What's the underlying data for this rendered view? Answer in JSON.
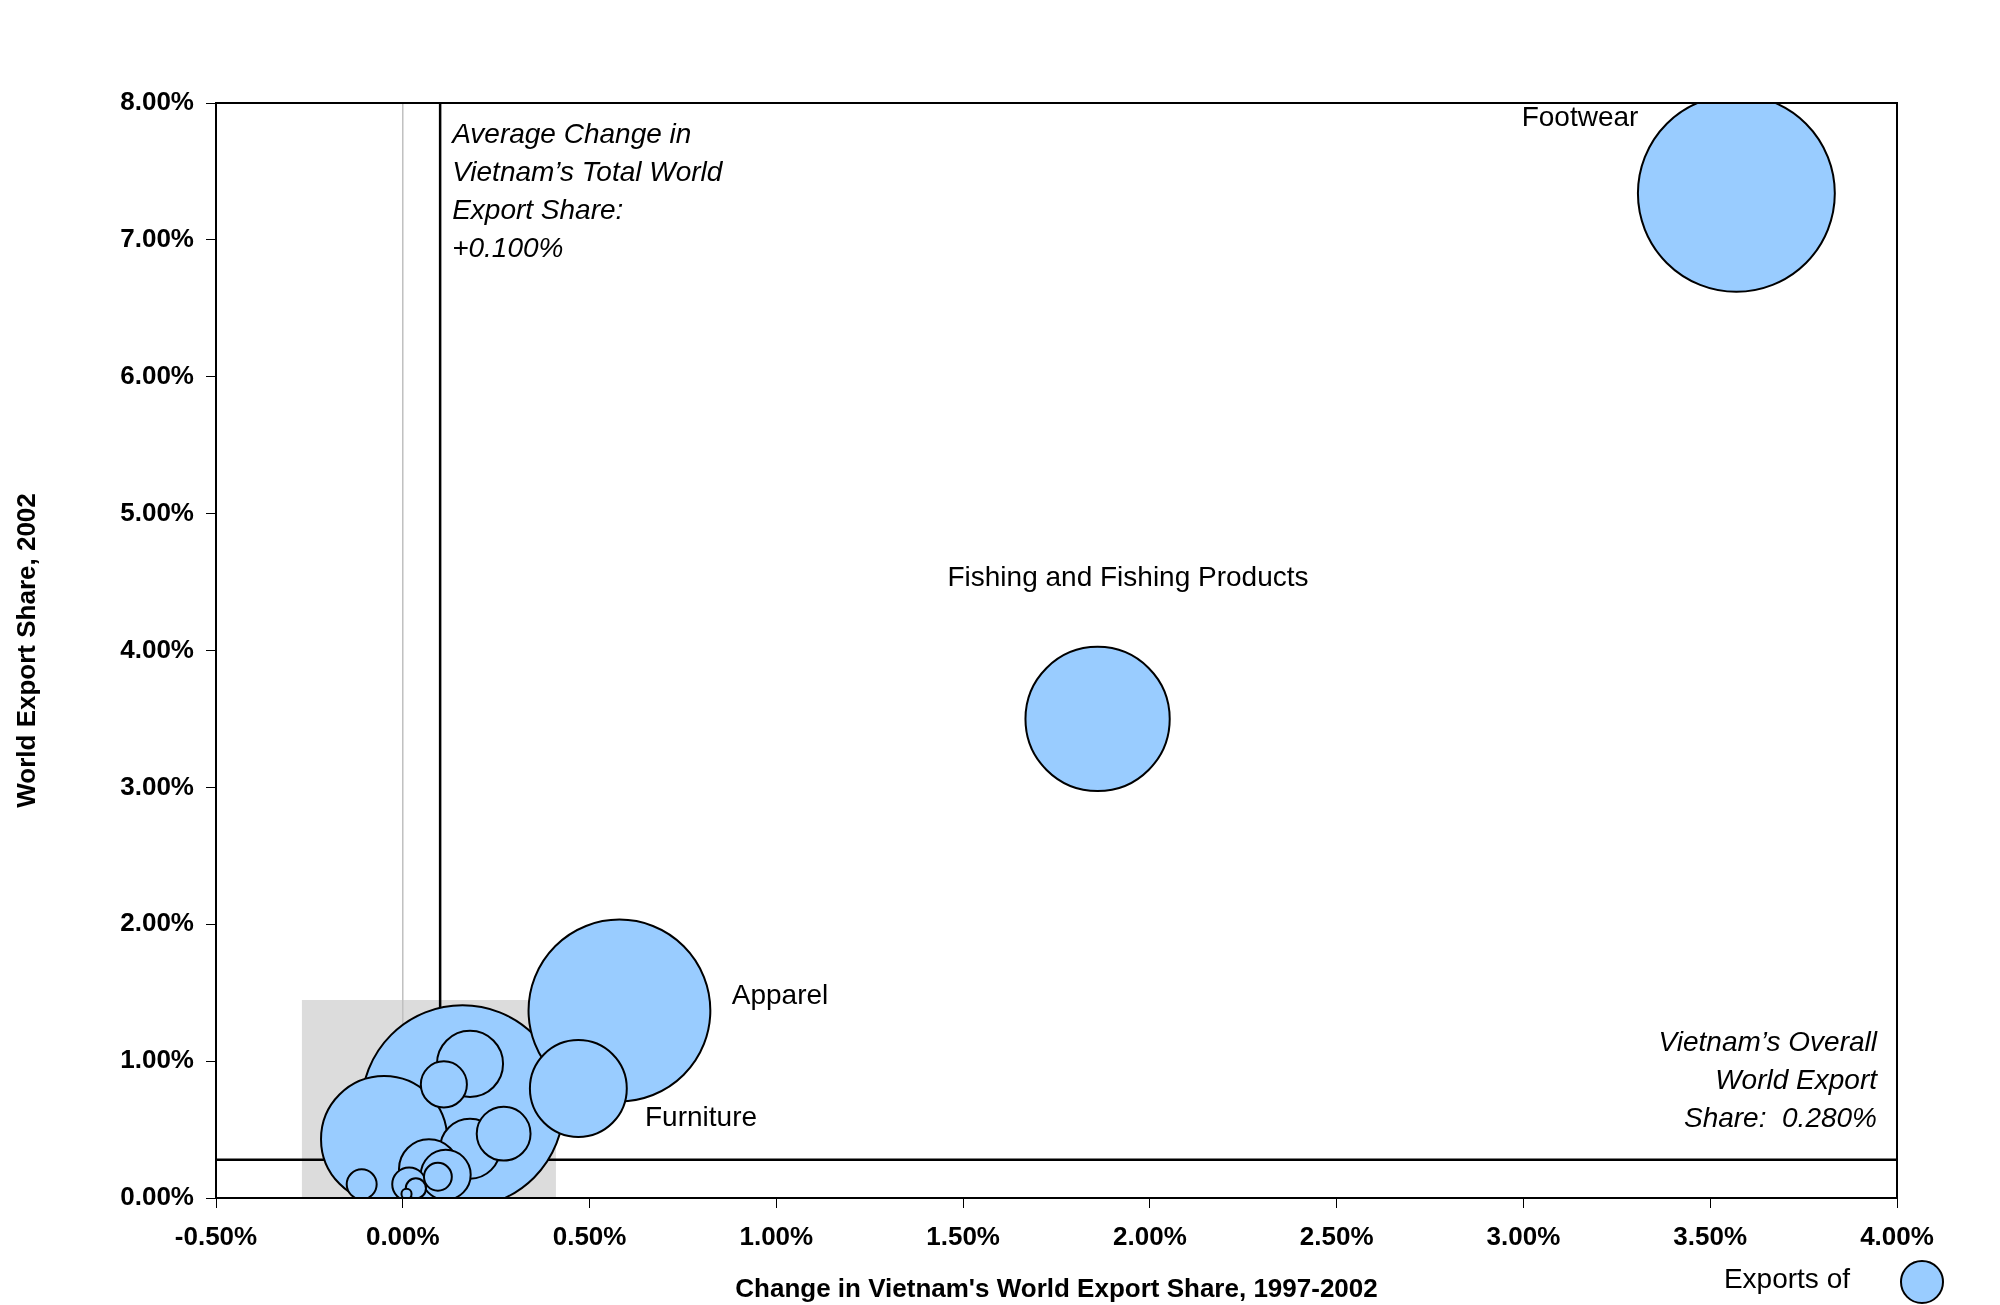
{
  "chart_data": {
    "type": "bubble",
    "xlabel": "Change in Vietnam's World Export Share, 1997-2002",
    "ylabel": "World Export Share, 2002",
    "xlim": [
      -0.5,
      4
    ],
    "ylim": [
      0,
      8
    ],
    "xticks": [
      {
        "value": -0.5,
        "label": "-0.50%"
      },
      {
        "value": 0,
        "label": "0.00%"
      },
      {
        "value": 0.5,
        "label": "0.50%"
      },
      {
        "value": 1,
        "label": "1.00%"
      },
      {
        "value": 1.5,
        "label": "1.50%"
      },
      {
        "value": 2,
        "label": "2.00%"
      },
      {
        "value": 2.5,
        "label": "2.50%"
      },
      {
        "value": 3,
        "label": "3.00%"
      },
      {
        "value": 3.5,
        "label": "3.50%"
      },
      {
        "value": 4,
        "label": "4.00%"
      }
    ],
    "yticks": [
      {
        "value": 0,
        "label": "0.00%"
      },
      {
        "value": 1,
        "label": "1.00%"
      },
      {
        "value": 2,
        "label": "2.00%"
      },
      {
        "value": 3,
        "label": "3.00%"
      },
      {
        "value": 4,
        "label": "4.00%"
      },
      {
        "value": 5,
        "label": "5.00%"
      },
      {
        "value": 6,
        "label": "6.00%"
      },
      {
        "value": 7,
        "label": "7.00%"
      },
      {
        "value": 8,
        "label": "8.00%"
      }
    ],
    "grid": false,
    "legend": false,
    "series": [
      {
        "color": "#99ccff",
        "x": [
          0.16,
          3.57,
          0.58,
          1.86,
          -0.05,
          0.47,
          0.18,
          0.18,
          0.07,
          0.27,
          0.115,
          0.11,
          0.017,
          -0.11,
          0.094,
          0.035,
          0.01
        ],
        "values": [
          0.67,
          7.34,
          1.37,
          3.5,
          0.43,
          0.8,
          0.98,
          0.36,
          0.21,
          0.47,
          0.17,
          0.83,
          0.1,
          0.1,
          0.155,
          0.07,
          0.03
        ],
        "sizes": [
          1,
          0.95,
          0.81,
          0.51,
          0.39,
          0.23,
          0.107,
          0.088,
          0.088,
          0.071,
          0.061,
          0.052,
          0.028,
          0.022,
          0.019,
          0.01,
          0.0025
        ]
      }
    ],
    "ref_lines": [
      {
        "axis": "x",
        "value": 0,
        "color": "#c0c0c0"
      },
      {
        "axis": "x",
        "value": 0.1,
        "color": "#000000",
        "label": "Average Change in\nVietnam’s Total World\nExport Share:\n+0.100%"
      },
      {
        "axis": "y",
        "value": 0.28,
        "color": "#000000",
        "label": "Vietnam’s Overall\nWorld Export\nShare:  0.280%"
      }
    ],
    "bands": [
      {
        "axis": "x",
        "from": -0.27,
        "to": 0.41,
        "color": "#dcdcdc"
      }
    ],
    "annotations": [
      "Footwear",
      "Fishing and Fishing Products",
      "Apparel",
      "Furniture",
      "Exports of"
    ]
  }
}
